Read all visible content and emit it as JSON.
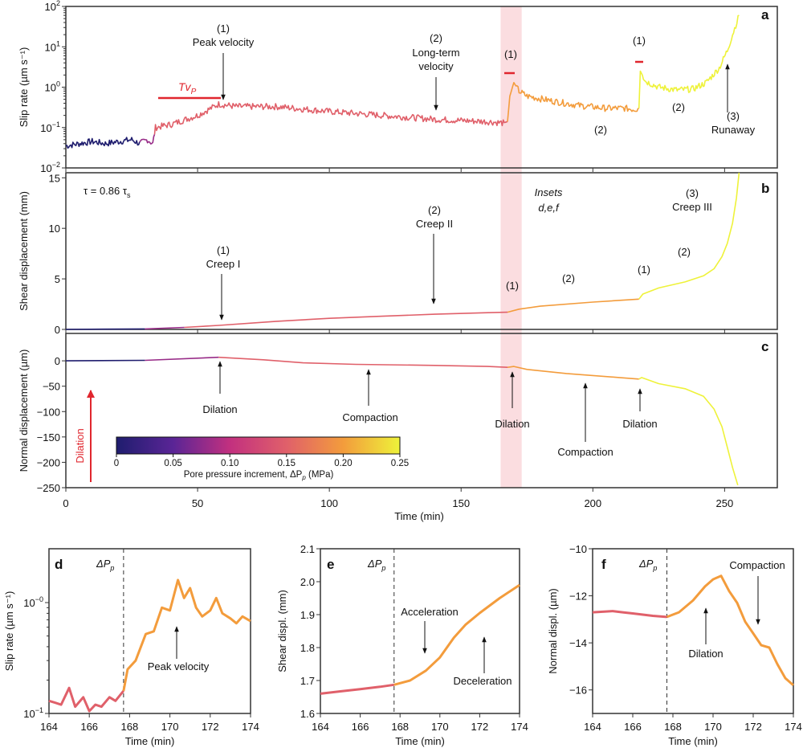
{
  "chart_data": [
    {
      "panel": "a",
      "type": "line",
      "ylabel": "Slip rate (µm s⁻¹)",
      "y_scale": "log",
      "ylim": [
        0.01,
        100
      ],
      "xlim": [
        0,
        270
      ],
      "y_tick_labels": [
        {
          "base": "10",
          "exp": "−2"
        },
        {
          "base": "10",
          "exp": "−1"
        },
        {
          "base": "10",
          "exp": "0"
        },
        {
          "base": "10",
          "exp": "1"
        },
        {
          "base": "10",
          "exp": "2"
        }
      ],
      "y_ticks": [
        0.01,
        0.1,
        1,
        10,
        100
      ],
      "x": [
        0,
        5,
        10,
        15,
        20,
        25,
        28,
        31,
        33,
        34,
        40,
        50,
        58,
        65,
        80,
        100,
        120,
        140,
        160,
        166,
        167.6,
        168.5,
        170,
        172,
        175,
        185,
        195,
        205,
        212,
        216,
        217.5,
        218,
        220,
        225,
        232,
        238,
        243,
        248,
        251,
        253,
        255.5
      ],
      "y": [
        0.035,
        0.04,
        0.045,
        0.04,
        0.045,
        0.05,
        0.04,
        0.05,
        0.04,
        0.1,
        0.12,
        0.2,
        0.38,
        0.33,
        0.33,
        0.25,
        0.2,
        0.16,
        0.14,
        0.13,
        0.14,
        0.6,
        1.3,
        0.8,
        0.6,
        0.45,
        0.35,
        0.3,
        0.3,
        0.28,
        0.3,
        2.5,
        1.4,
        1.0,
        0.85,
        0.9,
        1.3,
        3,
        8,
        20,
        60
      ],
      "annotations": {
        "a1_num": "(1)",
        "a1_text": "Peak velocity",
        "tvp_label": "Tv",
        "tvp_sub": "P",
        "a2_num": "(2)",
        "a2_text1": "Long-term",
        "a2_text2": "velocity",
        "b1_num": "(1)",
        "b2_num": "(2)",
        "c1_num": "(1)",
        "c2_num": "(2)",
        "c3_num": "(3)",
        "c3_text": "Runaway"
      },
      "panel_label": "a"
    },
    {
      "panel": "b",
      "type": "line",
      "ylabel": "Shear displacement (mm)",
      "ylim": [
        0,
        15.5
      ],
      "y_ticks": [
        0,
        5,
        10,
        15
      ],
      "y_tick_labels": [
        "0",
        "5",
        "10",
        "15"
      ],
      "x": [
        0,
        30,
        45,
        58,
        80,
        100,
        120,
        140,
        160,
        167.6,
        172,
        180,
        200,
        217.5,
        219,
        225,
        235,
        242,
        246,
        249,
        251,
        253,
        254.5,
        255.5
      ],
      "y": [
        0,
        0.05,
        0.2,
        0.4,
        0.8,
        1.1,
        1.3,
        1.5,
        1.65,
        1.7,
        2.0,
        2.3,
        2.7,
        3.0,
        3.5,
        4.1,
        4.7,
        5.3,
        6.0,
        7.2,
        8.5,
        10.5,
        13,
        15.5
      ],
      "annotations": {
        "tau": "τ = 0.86 τ",
        "tau_sub": "s",
        "insets1": "Insets",
        "insets2": "d,e,f",
        "creep1_num": "(1)",
        "creep1": "Creep I",
        "creep2_num": "(2)",
        "creep2": "Creep II",
        "creep3_num": "(3)",
        "creep3": "Creep III",
        "s2_1": "(1)",
        "s2_2": "(2)",
        "s3_1": "(1)",
        "s3_2": "(2)"
      },
      "panel_label": "b"
    },
    {
      "panel": "c",
      "type": "line",
      "ylabel": "Normal displacement (µm)",
      "xlabel": "Time (min)",
      "ylim": [
        -250,
        54
      ],
      "y_ticks": [
        0,
        -50,
        -100,
        -150,
        -200,
        -250
      ],
      "y_tick_labels": [
        "0",
        "−50",
        "−100",
        "−150",
        "−200",
        "−250"
      ],
      "x_ticks": [
        0,
        50,
        100,
        150,
        200,
        250
      ],
      "x_tick_labels": [
        "0",
        "50",
        "100",
        "150",
        "200",
        "250"
      ],
      "x": [
        0,
        30,
        58,
        75,
        90,
        110,
        140,
        160,
        167.6,
        170,
        175,
        190,
        210,
        217.5,
        218.5,
        225,
        235,
        242,
        246,
        249,
        251,
        253,
        255
      ],
      "y": [
        0,
        1,
        7,
        2,
        -4,
        -7,
        -9,
        -11,
        -12.8,
        -11,
        -17,
        -25,
        -33,
        -36,
        -33,
        -45,
        -55,
        -70,
        -95,
        -130,
        -170,
        -210,
        -245
      ],
      "annotations": {
        "dil1": "Dilation",
        "comp1": "Compaction",
        "dil2": "Dilation",
        "comp2": "Compaction",
        "dil3": "Dilation",
        "dilation_arrow": "Dilation"
      },
      "panel_label": "c"
    },
    {
      "panel": "d",
      "type": "line",
      "ylabel": "Slip rate (µm s⁻¹)",
      "xlabel": "Time (min)",
      "y_scale": "log",
      "ylim": [
        0.1,
        3.06
      ],
      "xlim": [
        164,
        174
      ],
      "y_ticks": [
        0.1,
        1
      ],
      "y_tick_labels": [
        {
          "base": "10",
          "exp": "−1"
        },
        {
          "base": "10",
          "exp": "−0"
        }
      ],
      "x_ticks": [
        164,
        166,
        168,
        170,
        172,
        174
      ],
      "x_tick_labels": [
        "164",
        "166",
        "168",
        "170",
        "172",
        "174"
      ],
      "pressure_step_time": 167.7,
      "pressure_step_label": "ΔP",
      "pressure_step_sub": "p",
      "x": [
        164,
        164.3,
        164.6,
        165,
        165.3,
        165.7,
        166,
        166.3,
        166.6,
        167,
        167.3,
        167.7,
        167.9,
        168.3,
        168.8,
        169.2,
        169.6,
        170,
        170.4,
        170.7,
        171,
        171.3,
        171.6,
        172,
        172.3,
        172.6,
        173,
        173.3,
        173.6,
        174
      ],
      "y": [
        0.13,
        0.125,
        0.12,
        0.17,
        0.115,
        0.14,
        0.105,
        0.12,
        0.115,
        0.14,
        0.13,
        0.16,
        0.25,
        0.3,
        0.52,
        0.55,
        0.9,
        0.85,
        1.6,
        1.1,
        1.35,
        0.9,
        0.75,
        0.85,
        1.1,
        0.8,
        0.72,
        0.65,
        0.75,
        0.68
      ],
      "annotations": {
        "peak": "Peak velocity"
      },
      "panel_label": "d"
    },
    {
      "panel": "e",
      "type": "line",
      "ylabel": "Shear displ. (mm)",
      "xlabel": "Time (min)",
      "ylim": [
        1.6,
        2.1
      ],
      "xlim": [
        164,
        174
      ],
      "y_ticks": [
        1.6,
        1.7,
        1.8,
        1.9,
        2.0,
        2.1
      ],
      "y_tick_labels": [
        "1.6",
        "1.7",
        "1.8",
        "1.9",
        "2.0",
        "2.1"
      ],
      "x_ticks": [
        164,
        166,
        168,
        170,
        172,
        174
      ],
      "x_tick_labels": [
        "164",
        "166",
        "168",
        "170",
        "172",
        "174"
      ],
      "pressure_step_time": 167.7,
      "pressure_step_label": "ΔP",
      "pressure_step_sub": "p",
      "x": [
        164,
        165,
        166,
        167,
        167.7,
        168.5,
        169.3,
        170,
        170.7,
        171.3,
        172,
        173,
        174
      ],
      "y": [
        1.66,
        1.667,
        1.674,
        1.681,
        1.687,
        1.7,
        1.73,
        1.77,
        1.83,
        1.87,
        1.905,
        1.95,
        1.99
      ],
      "annotations": {
        "accel": "Acceleration",
        "decel": "Deceleration"
      },
      "panel_label": "e"
    },
    {
      "panel": "f",
      "type": "line",
      "ylabel": "Normal displ. (µm)",
      "xlabel": "Time (min)",
      "ylim": [
        -17,
        -10
      ],
      "xlim": [
        164,
        174
      ],
      "y_ticks": [
        -10,
        -12,
        -14,
        -16
      ],
      "y_tick_labels": [
        "−10",
        "−12",
        "−14",
        "−16"
      ],
      "x_ticks": [
        164,
        166,
        168,
        170,
        172,
        174
      ],
      "x_tick_labels": [
        "164",
        "166",
        "168",
        "170",
        "172",
        "174"
      ],
      "pressure_step_time": 167.7,
      "pressure_step_label": "ΔP",
      "pressure_step_sub": "p",
      "x": [
        164,
        165,
        165.5,
        166,
        167,
        167.7,
        168.3,
        169,
        169.6,
        170,
        170.4,
        170.8,
        171.2,
        171.6,
        172,
        172.4,
        172.8,
        173.2,
        173.6,
        174
      ],
      "y": [
        -12.7,
        -12.65,
        -12.7,
        -12.75,
        -12.85,
        -12.9,
        -12.7,
        -12.2,
        -11.6,
        -11.3,
        -11.15,
        -11.8,
        -12.3,
        -13.1,
        -13.6,
        -14.1,
        -14.2,
        -14.9,
        -15.5,
        -15.8
      ],
      "annotations": {
        "comp": "Compaction",
        "dil": "Dilation"
      },
      "panel_label": "f"
    }
  ],
  "highlight_band_min": [
    165,
    173
  ],
  "highlight_color": "#fbdde0",
  "pressure_steps": [
    {
      "from_min": 0,
      "dPp_MPa": 0
    },
    {
      "from_min": 28,
      "dPp_MPa": 0.08
    },
    {
      "from_min": 33.5,
      "dPp_MPa": 0.15
    },
    {
      "from_min": 167.6,
      "dPp_MPa": 0.2
    },
    {
      "from_min": 217.5,
      "dPp_MPa": 0.25
    }
  ],
  "colorbar": {
    "label": "Pore pressure increment, ΔP",
    "label_sub": "p",
    "label_unit": " (MPa)",
    "ticks": [
      0,
      0.05,
      0.1,
      0.15,
      0.2,
      0.25
    ],
    "tick_labels": [
      "0",
      "0.05",
      "0.10",
      "0.15",
      "0.20",
      "0.25"
    ],
    "stops": [
      {
        "v": 0,
        "color": "#1f1d6e"
      },
      {
        "v": 0.05,
        "color": "#5a2596"
      },
      {
        "v": 0.1,
        "color": "#c2307f"
      },
      {
        "v": 0.15,
        "color": "#e0606a"
      },
      {
        "v": 0.2,
        "color": "#f39c3c"
      },
      {
        "v": 0.25,
        "color": "#eef23a"
      }
    ]
  },
  "tvp_color": "#e0262e"
}
